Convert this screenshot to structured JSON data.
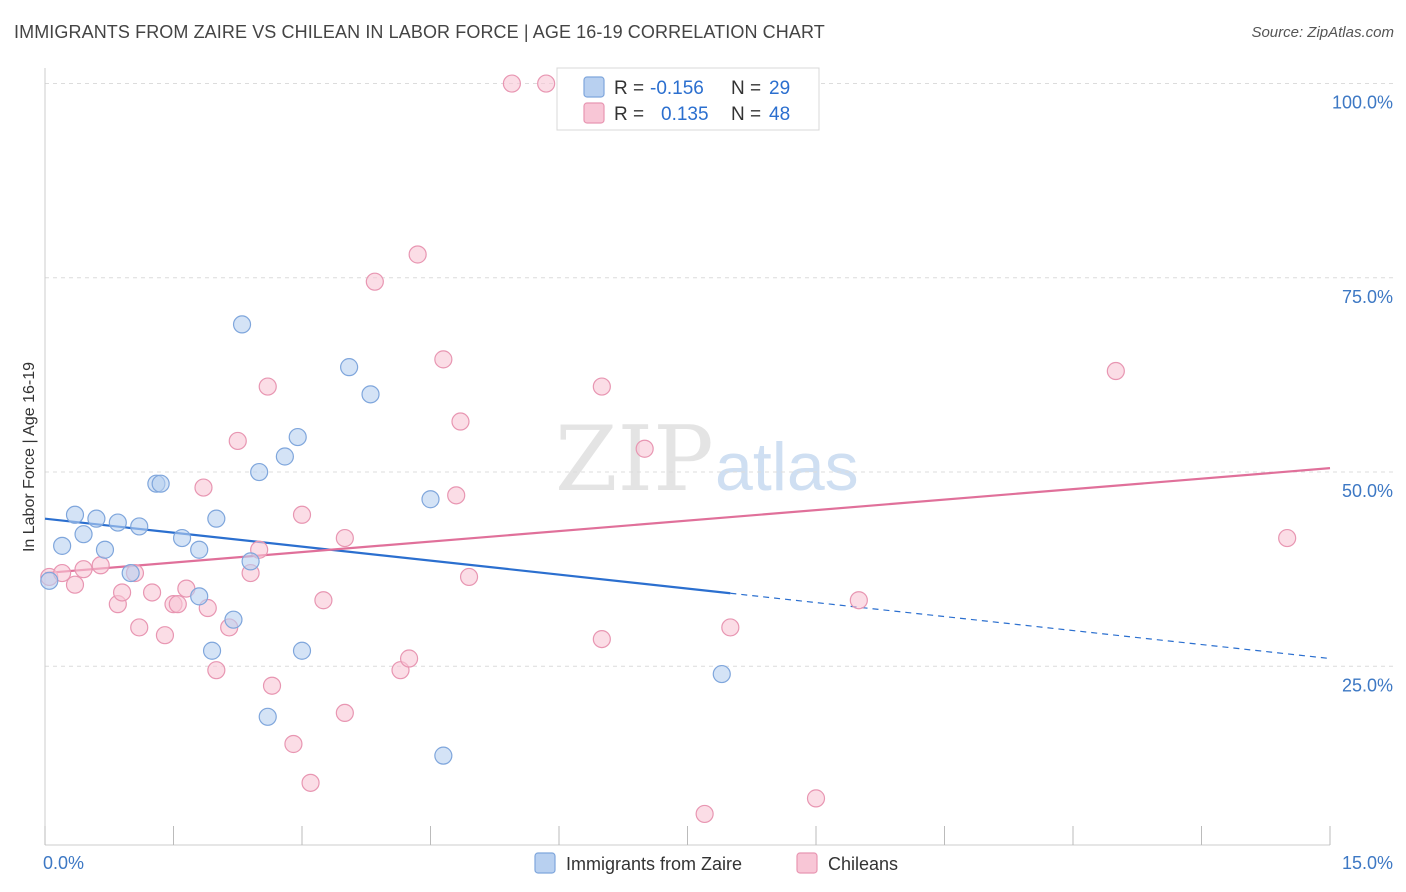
{
  "title": "IMMIGRANTS FROM ZAIRE VS CHILEAN IN LABOR FORCE | AGE 16-19 CORRELATION CHART",
  "source": "Source: ZipAtlas.com",
  "watermark": {
    "zip": "ZIP",
    "atlas": "atlas"
  },
  "colors": {
    "blue_fill": "#b8d0f0",
    "blue_stroke": "#7fa6dc",
    "blue_line": "#2b6fcf",
    "pink_fill": "#f8c6d6",
    "pink_stroke": "#e896b2",
    "pink_line": "#e0709a",
    "axis_text": "#3d78c4",
    "grid": "#dcdcdc"
  },
  "legend": {
    "r_label": "R =",
    "n_label": "N =",
    "series": [
      {
        "r": "-0.156",
        "n": "29"
      },
      {
        "r": "0.135",
        "n": "48"
      }
    ]
  },
  "chart_data": {
    "type": "scatter",
    "ylabel": "In Labor Force | Age 16-19",
    "xlim": [
      0,
      15
    ],
    "ylim": [
      2,
      102
    ],
    "x_tick_labels": [
      "0.0%",
      "15.0%"
    ],
    "y_ticks": [
      25,
      50,
      75,
      100
    ],
    "y_tick_labels": [
      "25.0%",
      "50.0%",
      "75.0%",
      "100.0%"
    ],
    "grid": true,
    "series": [
      {
        "name": "Immigrants from Zaire",
        "points": [
          [
            0.05,
            36.0
          ],
          [
            0.2,
            40.5
          ],
          [
            0.35,
            44.5
          ],
          [
            0.45,
            42.0
          ],
          [
            0.6,
            44.0
          ],
          [
            0.7,
            40.0
          ],
          [
            0.85,
            43.5
          ],
          [
            1.0,
            37.0
          ],
          [
            1.1,
            43.0
          ],
          [
            1.3,
            48.5
          ],
          [
            1.35,
            48.5
          ],
          [
            1.6,
            41.5
          ],
          [
            1.8,
            34.0
          ],
          [
            1.8,
            40.0
          ],
          [
            1.95,
            27.0
          ],
          [
            2.0,
            44.0
          ],
          [
            2.2,
            31.0
          ],
          [
            2.3,
            69.0
          ],
          [
            2.4,
            38.5
          ],
          [
            2.5,
            50.0
          ],
          [
            2.6,
            18.5
          ],
          [
            2.8,
            52.0
          ],
          [
            2.95,
            54.5
          ],
          [
            3.0,
            27.0
          ],
          [
            3.55,
            63.5
          ],
          [
            3.8,
            60.0
          ],
          [
            4.5,
            46.5
          ],
          [
            4.65,
            13.5
          ],
          [
            7.9,
            24.0
          ]
        ],
        "trend": {
          "x0": 0.0,
          "y0": 44.0,
          "x_solid_end": 8.0,
          "x1": 15.0,
          "y1": 26.0
        }
      },
      {
        "name": "Chileans",
        "points": [
          [
            0.05,
            36.5
          ],
          [
            0.2,
            37.0
          ],
          [
            0.35,
            35.5
          ],
          [
            0.45,
            37.5
          ],
          [
            0.65,
            38.0
          ],
          [
            0.85,
            33.0
          ],
          [
            0.9,
            34.5
          ],
          [
            1.05,
            37.0
          ],
          [
            1.1,
            30.0
          ],
          [
            1.25,
            34.5
          ],
          [
            1.4,
            29.0
          ],
          [
            1.5,
            33.0
          ],
          [
            1.55,
            33.0
          ],
          [
            1.65,
            35.0
          ],
          [
            1.85,
            48.0
          ],
          [
            1.9,
            32.5
          ],
          [
            2.0,
            24.5
          ],
          [
            2.15,
            30.0
          ],
          [
            2.25,
            54.0
          ],
          [
            2.4,
            37.0
          ],
          [
            2.5,
            40.0
          ],
          [
            2.6,
            61.0
          ],
          [
            2.65,
            22.5
          ],
          [
            2.9,
            15.0
          ],
          [
            3.0,
            44.5
          ],
          [
            3.1,
            10.0
          ],
          [
            3.25,
            33.5
          ],
          [
            3.5,
            19.0
          ],
          [
            3.5,
            41.5
          ],
          [
            3.85,
            74.5
          ],
          [
            4.15,
            24.5
          ],
          [
            4.25,
            26.0
          ],
          [
            4.35,
            78.0
          ],
          [
            4.65,
            64.5
          ],
          [
            4.8,
            47.0
          ],
          [
            4.85,
            56.5
          ],
          [
            4.95,
            36.5
          ],
          [
            5.45,
            100.0
          ],
          [
            5.85,
            100.0
          ],
          [
            6.5,
            28.5
          ],
          [
            6.5,
            61.0
          ],
          [
            7.0,
            53.0
          ],
          [
            7.7,
            6.0
          ],
          [
            8.0,
            30.0
          ],
          [
            9.0,
            8.0
          ],
          [
            9.5,
            33.5
          ],
          [
            12.5,
            63.0
          ],
          [
            14.5,
            41.5
          ]
        ],
        "trend": {
          "x0": 0.0,
          "y0": 37.0,
          "x1": 15.0,
          "y1": 50.5
        }
      }
    ]
  }
}
